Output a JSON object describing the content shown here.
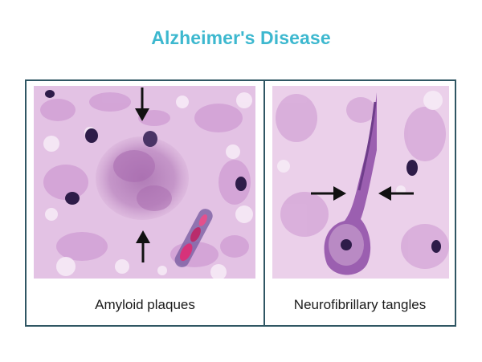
{
  "title": "Alzheimer's Disease",
  "panels": [
    {
      "caption": "Amyloid plaques"
    },
    {
      "caption": "Neurofibrillary tangles"
    }
  ],
  "colors": {
    "title": "#3db8cf",
    "frame": "#2f5663",
    "tissue_background": "#e7c8e6",
    "neuropil": "#c98fce",
    "nucleus": "#2e1c49",
    "plaque": "#b57bb8",
    "caption": "#1a1a1a"
  }
}
